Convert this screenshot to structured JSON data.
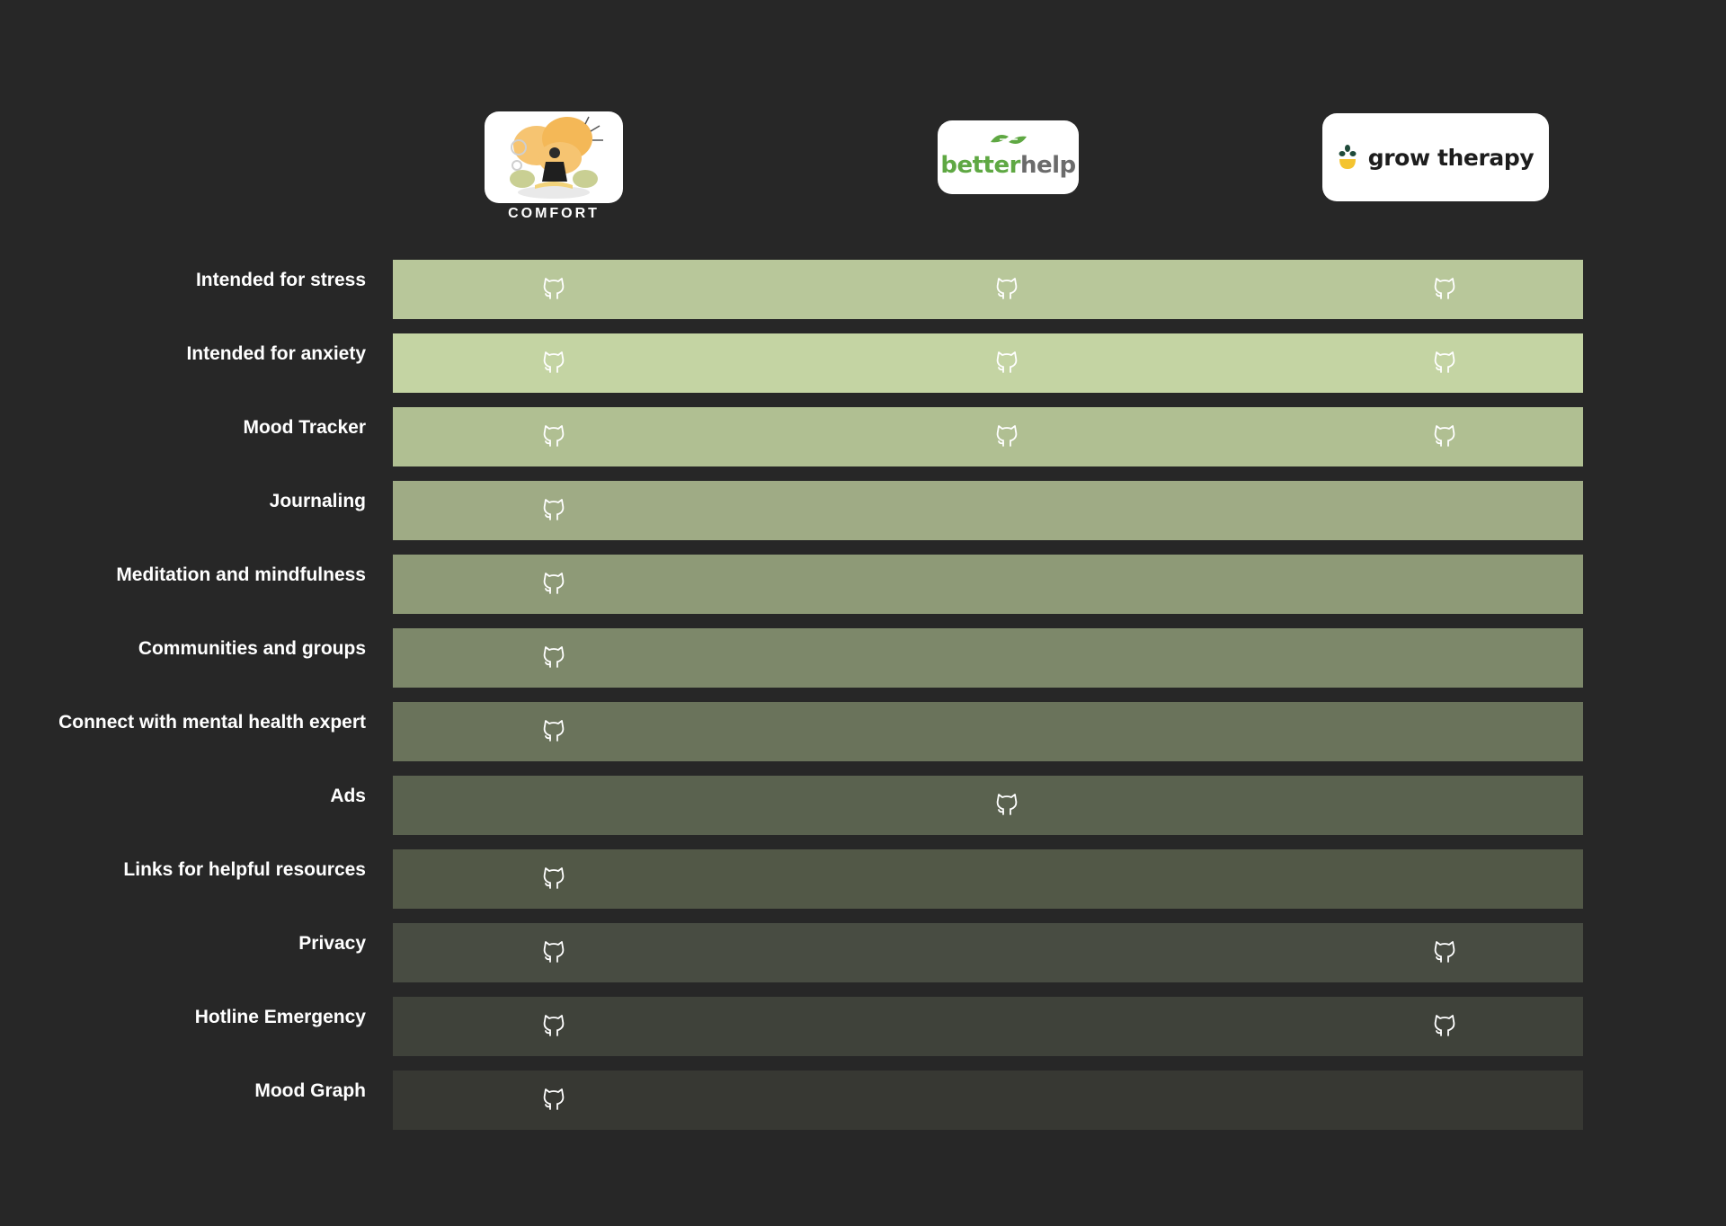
{
  "brands": [
    {
      "name": "COMFORT",
      "logo_icon": "meditation-illustration"
    },
    {
      "name_part1": "better",
      "name_part2": "help",
      "logo_icon": "leaf-icon"
    },
    {
      "name": "grow therapy",
      "logo_icon": "sprout-icon"
    }
  ],
  "features": [
    {
      "label": "Intended for stress",
      "color": "#b8c79a",
      "values": [
        true,
        true,
        true
      ]
    },
    {
      "label": "Intended for anxiety",
      "color": "#c4d4a3",
      "values": [
        true,
        true,
        true
      ]
    },
    {
      "label": "Mood Tracker",
      "color": "#b0bf92",
      "values": [
        true,
        true,
        true
      ]
    },
    {
      "label": "Journaling",
      "color": "#9fab85",
      "values": [
        true,
        false,
        false
      ]
    },
    {
      "label": "Meditation and mindfulness",
      "color": "#8e9a77",
      "values": [
        true,
        false,
        false
      ]
    },
    {
      "label": "Communities and groups",
      "color": "#7d886a",
      "values": [
        true,
        false,
        false
      ]
    },
    {
      "label": "Connect with mental health expert",
      "color": "#6a735b",
      "values": [
        true,
        false,
        false
      ]
    },
    {
      "label": "Ads",
      "color": "#5a624f",
      "values": [
        false,
        true,
        false
      ]
    },
    {
      "label": "Links for helpful resources",
      "color": "#525847",
      "values": [
        true,
        false,
        false
      ]
    },
    {
      "label": "Privacy",
      "color": "#484c42",
      "values": [
        true,
        false,
        true
      ]
    },
    {
      "label": "Hotline Emergency",
      "color": "#3f423a",
      "values": [
        true,
        false,
        true
      ]
    },
    {
      "label": "Mood Graph",
      "color": "#373833",
      "values": [
        true,
        false,
        false
      ]
    }
  ],
  "check_icon": "github-octocat-icon",
  "colors": {
    "background": "#272727",
    "label_text": "#ffffff",
    "check": "#ffffff"
  }
}
